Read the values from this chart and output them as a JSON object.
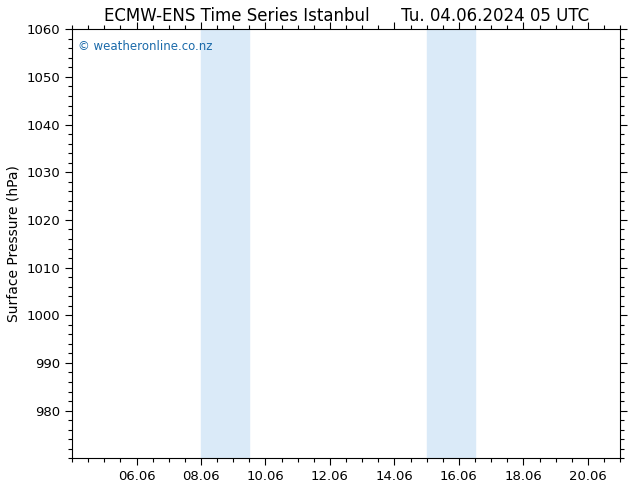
{
  "title_left": "ECMW-ENS Time Series Istanbul",
  "title_right": "Tu. 04.06.2024 05 UTC",
  "ylabel": "Surface Pressure (hPa)",
  "ylim": [
    970,
    1060
  ],
  "yticks": [
    980,
    990,
    1000,
    1010,
    1020,
    1030,
    1040,
    1050,
    1060
  ],
  "xlim_start": 4.0,
  "xlim_end": 21.0,
  "xtick_positions": [
    6,
    8,
    10,
    12,
    14,
    16,
    18,
    20
  ],
  "xtick_labels": [
    "06.06",
    "08.06",
    "10.06",
    "12.06",
    "14.06",
    "16.06",
    "18.06",
    "20.06"
  ],
  "shaded_bands": [
    {
      "xmin": 8.0,
      "xmax": 9.5
    },
    {
      "xmin": 15.0,
      "xmax": 16.5
    }
  ],
  "band_color": "#daeaf8",
  "band_alpha": 1.0,
  "background_color": "#ffffff",
  "plot_bg_color": "#ffffff",
  "watermark": "© weatheronline.co.nz",
  "watermark_color": "#1a6aaa",
  "title_fontsize": 12,
  "ylabel_fontsize": 10,
  "tick_fontsize": 9.5
}
